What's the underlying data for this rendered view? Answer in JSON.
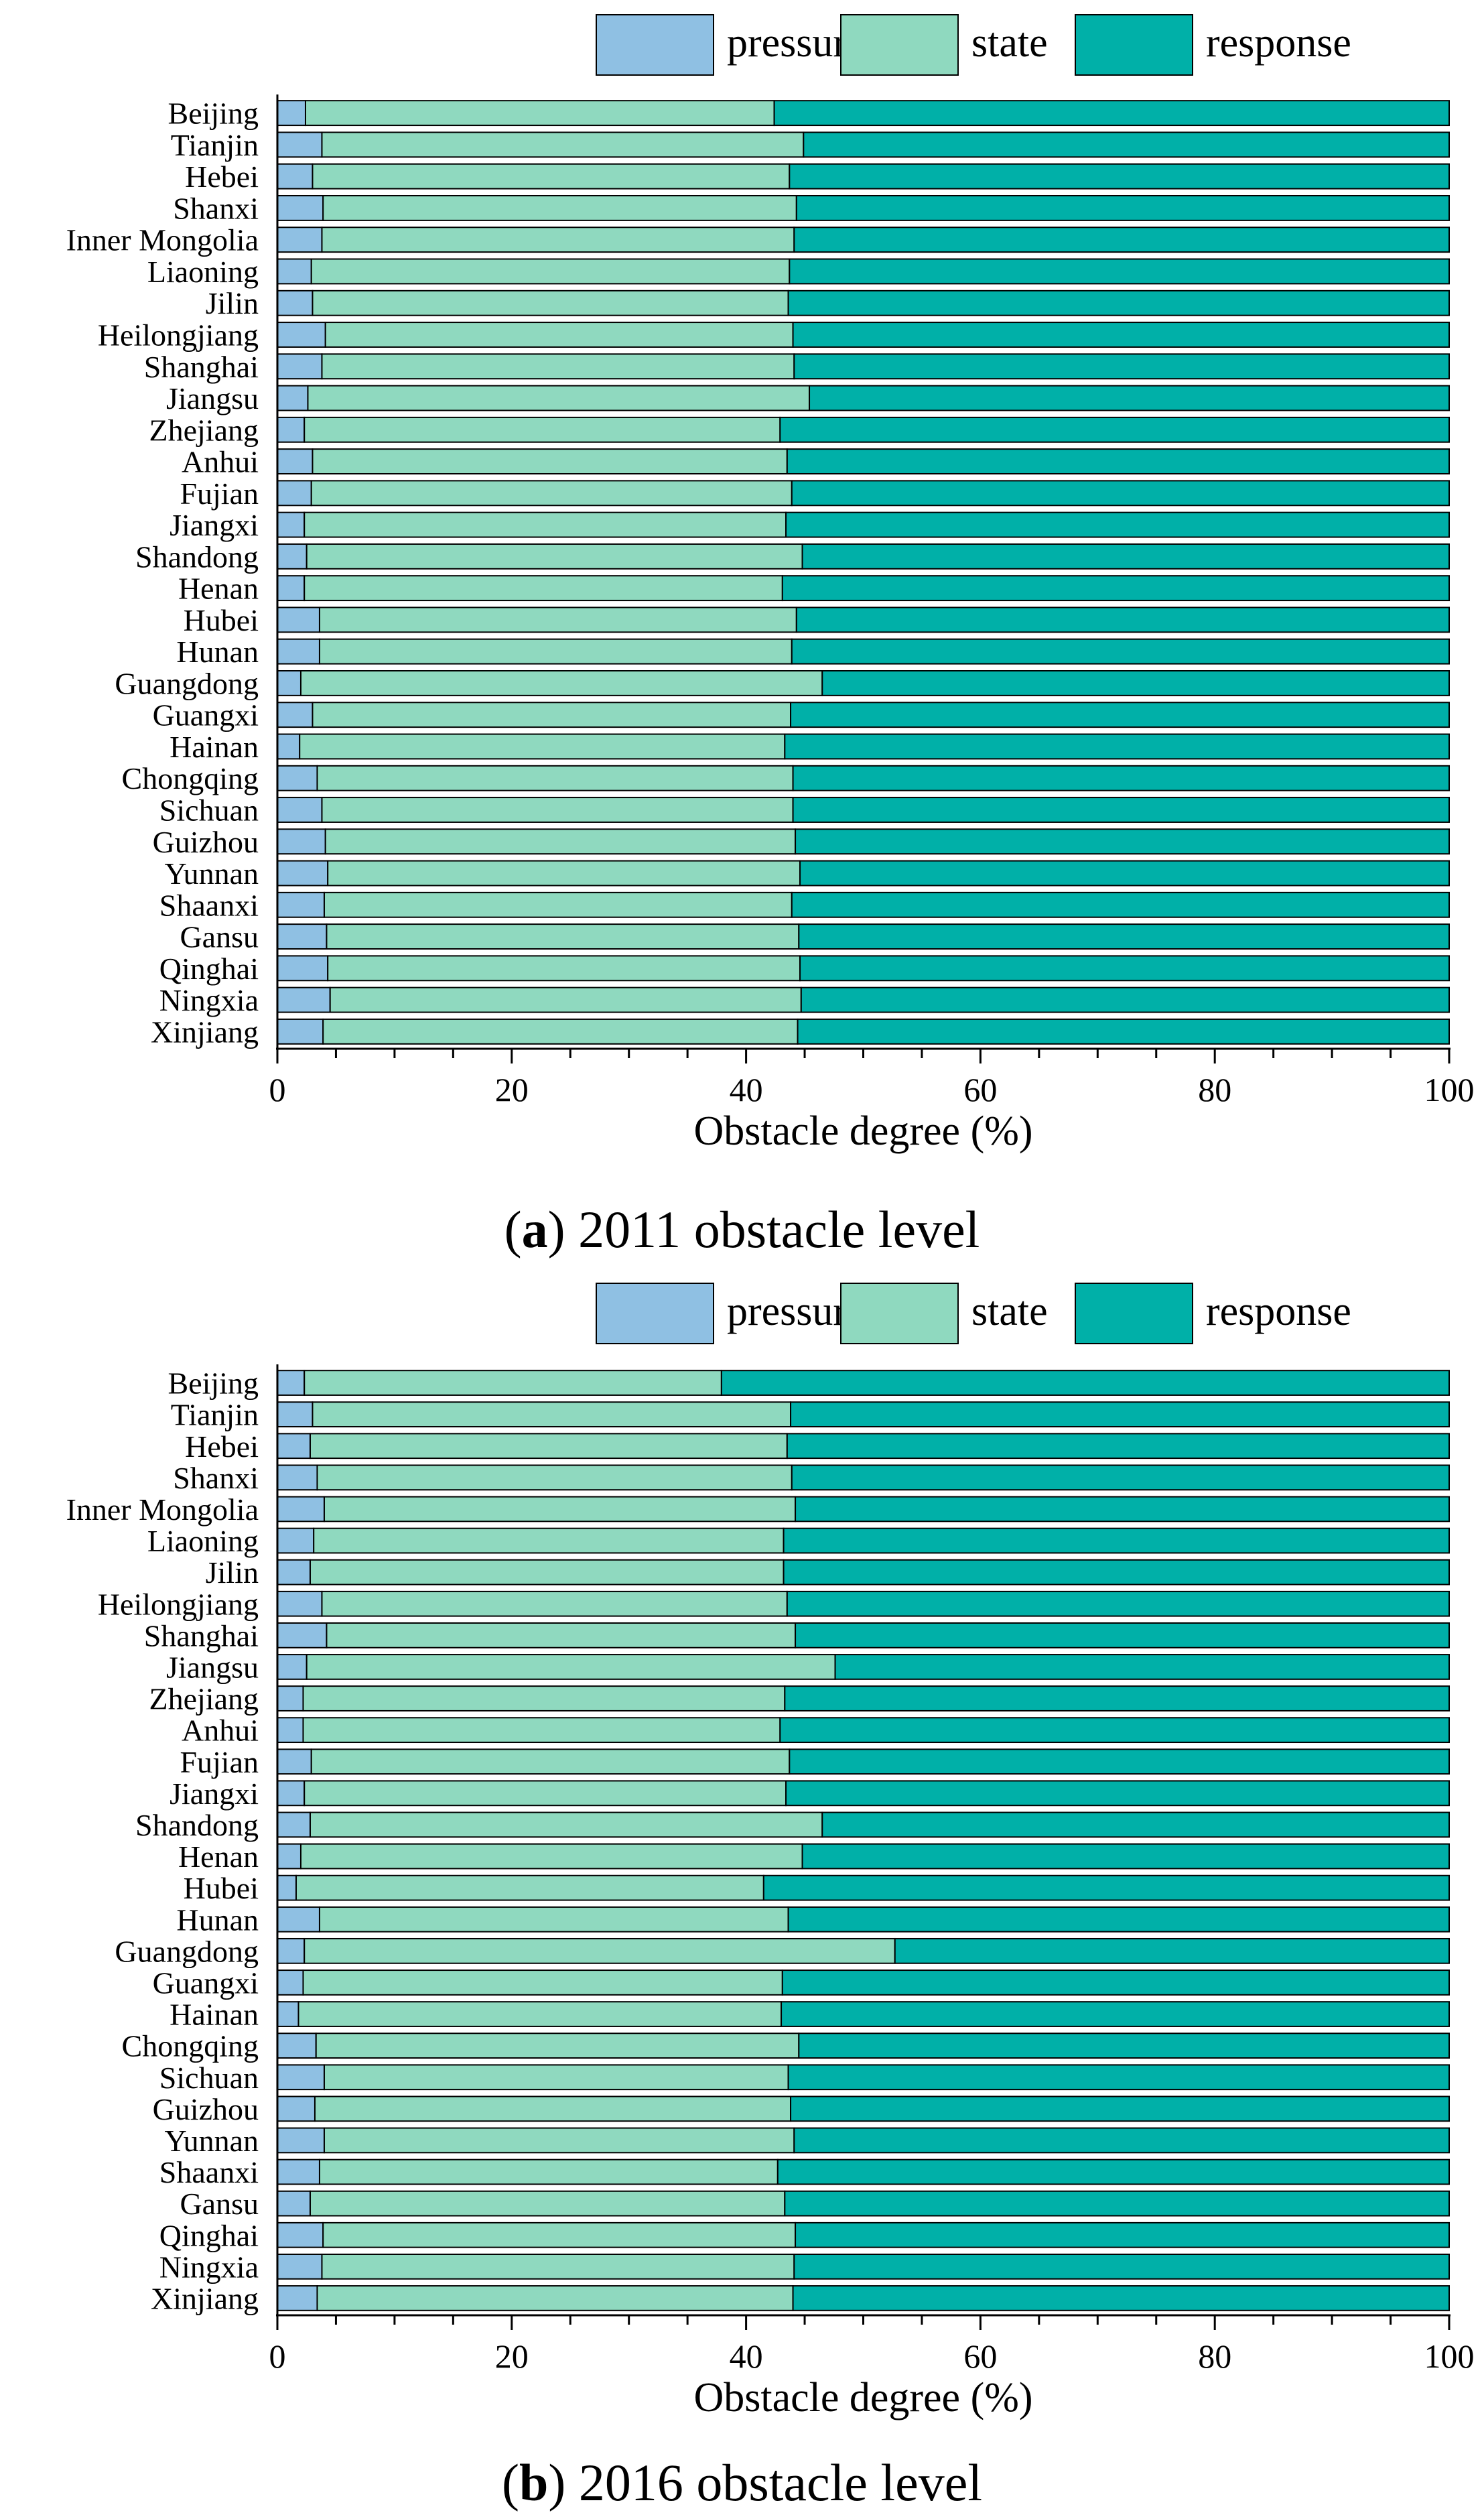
{
  "chart_data": [
    {
      "type": "bar",
      "orientation": "horizontal",
      "stacked": true,
      "caption_letter": "a",
      "caption_rest": "2011 obstacle level",
      "xlabel": "Obstacle degree (%)",
      "ylabel": "",
      "xlim": [
        0,
        100
      ],
      "xticks": [
        0,
        20,
        40,
        60,
        80,
        100
      ],
      "legend_position": "top-right",
      "categories": [
        "Beijing",
        "Tianjin",
        "Hebei",
        "Shanxi",
        "Inner Mongolia",
        "Liaoning",
        "Jilin",
        "Heilongjiang",
        "Shanghai",
        "Jiangsu",
        "Zhejiang",
        "Anhui",
        "Fujian",
        "Jiangxi",
        "Shandong",
        "Henan",
        "Hubei",
        "Hunan",
        "Guangdong",
        "Guangxi",
        "Hainan",
        "Chongqing",
        "Sichuan",
        "Guizhou",
        "Yunnan",
        "Shaanxi",
        "Gansu",
        "Qinghai",
        "Ningxia",
        "Xinjiang"
      ],
      "series": [
        {
          "name": "pressure",
          "color": "#8fc0e3",
          "values": [
            2.4,
            3.8,
            3.0,
            3.9,
            3.8,
            2.9,
            3.0,
            4.1,
            3.8,
            2.6,
            2.3,
            3.0,
            2.9,
            2.3,
            2.5,
            2.3,
            3.6,
            3.6,
            2.0,
            3.0,
            1.9,
            3.4,
            3.8,
            4.1,
            4.3,
            4.0,
            4.2,
            4.3,
            4.5,
            3.9
          ]
        },
        {
          "name": "state",
          "color": "#8fd9bf",
          "values": [
            40.0,
            41.1,
            40.7,
            40.4,
            40.3,
            40.8,
            40.6,
            39.9,
            40.3,
            42.8,
            40.6,
            40.5,
            41.0,
            41.1,
            42.3,
            40.8,
            40.7,
            40.3,
            44.5,
            40.8,
            41.4,
            40.6,
            40.2,
            40.1,
            40.3,
            39.9,
            40.3,
            40.3,
            40.2,
            40.5
          ]
        },
        {
          "name": "response",
          "color": "#00b0a8",
          "values": [
            57.6,
            55.1,
            56.3,
            55.7,
            55.9,
            56.3,
            56.4,
            56.0,
            55.9,
            54.6,
            57.1,
            56.5,
            56.1,
            56.6,
            55.2,
            56.9,
            55.7,
            56.1,
            53.5,
            56.2,
            56.7,
            56.0,
            56.0,
            55.8,
            55.4,
            56.1,
            55.5,
            55.4,
            55.3,
            55.6
          ]
        }
      ]
    },
    {
      "type": "bar",
      "orientation": "horizontal",
      "stacked": true,
      "caption_letter": "b",
      "caption_rest": "2016 obstacle level",
      "xlabel": "Obstacle degree (%)",
      "ylabel": "",
      "xlim": [
        0,
        100
      ],
      "xticks": [
        0,
        20,
        40,
        60,
        80,
        100
      ],
      "legend_position": "top-right",
      "categories": [
        "Beijing",
        "Tianjin",
        "Hebei",
        "Shanxi",
        "Inner Mongolia",
        "Liaoning",
        "Jilin",
        "Heilongjiang",
        "Shanghai",
        "Jiangsu",
        "Zhejiang",
        "Anhui",
        "Fujian",
        "Jiangxi",
        "Shandong",
        "Henan",
        "Hubei",
        "Hunan",
        "Guangdong",
        "Guangxi",
        "Hainan",
        "Chongqing",
        "Sichuan",
        "Guizhou",
        "Yunnan",
        "Shaanxi",
        "Gansu",
        "Qinghai",
        "Ningxia",
        "Xinjiang"
      ],
      "series": [
        {
          "name": "pressure",
          "color": "#8fc0e3",
          "values": [
            2.3,
            3.0,
            2.8,
            3.4,
            4.0,
            3.1,
            2.8,
            3.8,
            4.2,
            2.5,
            2.2,
            2.2,
            2.9,
            2.3,
            2.8,
            2.0,
            1.6,
            3.6,
            2.3,
            2.2,
            1.8,
            3.3,
            4.0,
            3.2,
            4.0,
            3.6,
            2.8,
            3.9,
            3.8,
            3.4
          ]
        },
        {
          "name": "state",
          "color": "#8fd9bf",
          "values": [
            35.6,
            40.8,
            40.7,
            40.5,
            40.2,
            40.1,
            40.4,
            39.7,
            40.0,
            45.1,
            41.1,
            40.7,
            40.8,
            41.1,
            43.7,
            42.8,
            39.9,
            40.0,
            50.4,
            40.9,
            41.2,
            41.2,
            39.6,
            40.6,
            40.1,
            39.1,
            40.5,
            40.3,
            40.3,
            40.6
          ]
        },
        {
          "name": "response",
          "color": "#00b0a8",
          "values": [
            62.1,
            56.2,
            56.5,
            56.1,
            55.8,
            56.8,
            56.8,
            56.5,
            55.8,
            52.4,
            56.7,
            57.1,
            56.3,
            56.6,
            53.5,
            55.2,
            58.5,
            56.4,
            47.3,
            56.9,
            57.0,
            55.5,
            56.4,
            56.2,
            55.9,
            57.3,
            56.7,
            55.8,
            55.9,
            56.0
          ]
        }
      ]
    }
  ]
}
